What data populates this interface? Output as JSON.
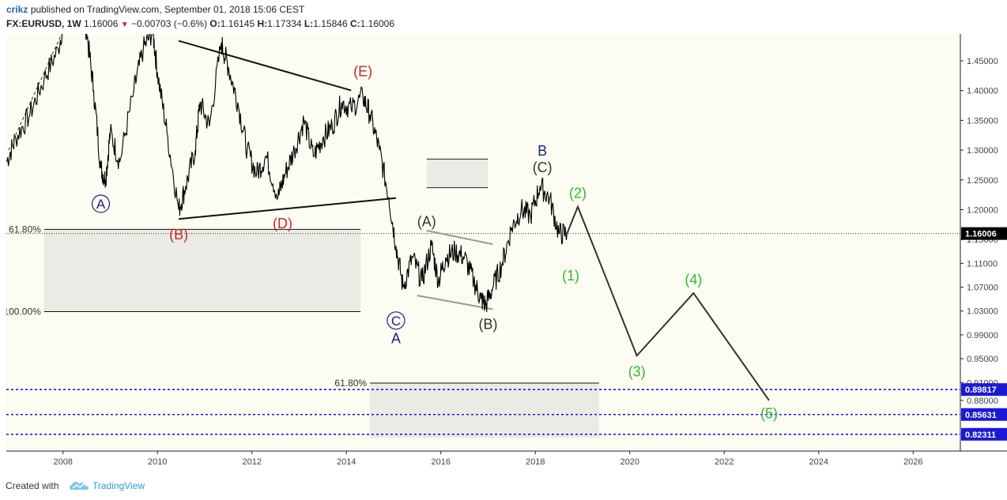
{
  "header": {
    "author": "crikz",
    "published_text": "published on TradingView.com, September 01, 2018 15:06 CEST",
    "symbol": "FX:EURUSD, 1W",
    "last": "1.16006",
    "change_arrow": "▼",
    "change": "−0.00703 (−0.6%)",
    "o_label": "O:",
    "o_value": "1.16145",
    "h_label": "H:",
    "h_value": "1.17334",
    "l_label": "L:",
    "l_value": "1.15846",
    "c_label": "C:",
    "c_value": "1.16006"
  },
  "footer": {
    "created_with": "Created with",
    "brand": "TradingView",
    "logo_icon": "tradingview-cloud-icon"
  },
  "colors": {
    "background": "#fcfcf2",
    "price": "#000000",
    "wave_red": "#c62828",
    "wave_blue": "#1a237e",
    "wave_green": "#2eb82e",
    "wave_gray": "#333333",
    "fib_fill": "#e6e6e1",
    "dotted_blue": "#1a1ad6",
    "axis_text": "#444444"
  },
  "chart_data": {
    "type": "line",
    "ylim": [
      0.795,
      1.495
    ],
    "xlim": [
      2006.8,
      2027.0
    ],
    "x_ticks": [
      2008,
      2010,
      2012,
      2014,
      2016,
      2018,
      2020,
      2022,
      2024,
      2026
    ],
    "y_ticks": [
      "1.45000",
      "1.40000",
      "1.35000",
      "1.30000",
      "1.25000",
      "1.20000",
      "1.15000",
      "1.11000",
      "1.07000",
      "1.03000",
      "0.99000",
      "0.95000",
      "0.91000",
      "0.88000"
    ],
    "current_price": {
      "value": 1.16006,
      "label": "1.16006"
    },
    "price_series": {
      "x": [
        2006.8,
        2007.0,
        2007.3,
        2007.6,
        2007.9,
        2008.1,
        2008.3,
        2008.5,
        2008.65,
        2008.8,
        2008.9,
        2009.0,
        2009.2,
        2009.5,
        2009.7,
        2009.9,
        2010.0,
        2010.2,
        2010.45,
        2010.6,
        2010.8,
        2010.9,
        2011.1,
        2011.35,
        2011.5,
        2011.7,
        2011.9,
        2012.1,
        2012.3,
        2012.55,
        2012.7,
        2012.9,
        2013.1,
        2013.3,
        2013.5,
        2013.7,
        2013.9,
        2014.1,
        2014.35,
        2014.5,
        2014.7,
        2014.9,
        2015.05,
        2015.2,
        2015.4,
        2015.6,
        2015.8,
        2015.95,
        2016.1,
        2016.3,
        2016.5,
        2016.7,
        2016.85,
        2016.95,
        2017.1,
        2017.3,
        2017.5,
        2017.7,
        2017.9,
        2018.1,
        2018.3,
        2018.5,
        2018.67
      ],
      "y": [
        1.28,
        1.32,
        1.36,
        1.42,
        1.47,
        1.55,
        1.57,
        1.5,
        1.4,
        1.27,
        1.25,
        1.33,
        1.28,
        1.4,
        1.47,
        1.5,
        1.43,
        1.33,
        1.2,
        1.24,
        1.3,
        1.38,
        1.34,
        1.48,
        1.44,
        1.38,
        1.3,
        1.26,
        1.29,
        1.22,
        1.26,
        1.3,
        1.35,
        1.29,
        1.32,
        1.34,
        1.38,
        1.37,
        1.39,
        1.36,
        1.3,
        1.22,
        1.14,
        1.07,
        1.12,
        1.08,
        1.14,
        1.08,
        1.12,
        1.13,
        1.12,
        1.08,
        1.05,
        1.04,
        1.07,
        1.11,
        1.17,
        1.2,
        1.19,
        1.24,
        1.22,
        1.16,
        1.16
      ]
    },
    "projection": {
      "x": [
        2018.67,
        2018.9,
        2020.15,
        2021.35,
        2022.95
      ],
      "y": [
        1.16,
        1.205,
        0.955,
        1.06,
        0.88
      ]
    },
    "trendlines": [
      {
        "x": [
          2010.45,
          2014.1
        ],
        "y": [
          1.4835,
          1.4003
        ]
      },
      {
        "x": [
          2010.45,
          2015.05
        ],
        "y": [
          1.1845,
          1.2195
        ]
      },
      {
        "x": [
          2015.7,
          2017.1
        ],
        "y": [
          1.165,
          1.142
        ]
      },
      {
        "x": [
          2015.5,
          2017.1
        ],
        "y": [
          1.056,
          1.033
        ]
      }
    ],
    "rectangles": [
      {
        "x": [
          2015.7,
          2017.0
        ],
        "y": [
          1.237,
          1.285
        ]
      },
      {
        "x": [
          2007.6,
          2014.3
        ],
        "y": [
          1.029,
          1.167
        ]
      },
      {
        "x": [
          2014.5,
          2019.35
        ],
        "y": [
          0.817,
          0.909
        ]
      }
    ],
    "fib_levels": [
      {
        "label": "61.80%",
        "value": 1.167,
        "x": [
          2007.6,
          2014.3
        ]
      },
      {
        "label": "100.00%",
        "value": 1.029,
        "x": [
          2007.6,
          2014.3
        ]
      },
      {
        "label": "61.80%",
        "value": 0.909,
        "x": [
          2014.5,
          2019.35
        ]
      }
    ],
    "horizontal_levels": [
      {
        "value": 0.89817,
        "label": "0.89817"
      },
      {
        "value": 0.85631,
        "label": "0.85631"
      },
      {
        "value": 0.82311,
        "label": "0.82311"
      }
    ],
    "wave_labels": [
      {
        "text": "A",
        "circled": true,
        "x": 2008.8,
        "y": 1.21,
        "color": "#1a237e"
      },
      {
        "text": "(B)",
        "x": 2010.45,
        "y": 1.158,
        "color": "#c62828"
      },
      {
        "text": "(D)",
        "x": 2012.65,
        "y": 1.177,
        "color": "#c62828"
      },
      {
        "text": "(E)",
        "x": 2014.35,
        "y": 1.432,
        "color": "#c62828"
      },
      {
        "text": "C",
        "circled": true,
        "x": 2015.05,
        "y": 1.014,
        "color": "#1a237e"
      },
      {
        "text": "A",
        "x": 2015.05,
        "y": 0.984,
        "color": "#1a237e"
      },
      {
        "text": "(A)",
        "x": 2015.7,
        "y": 1.18,
        "color": "#333333"
      },
      {
        "text": "(B)",
        "x": 2017.0,
        "y": 1.008,
        "color": "#333333"
      },
      {
        "text": "B",
        "x": 2018.15,
        "y": 1.299,
        "color": "#1a237e"
      },
      {
        "text": "(C)",
        "x": 2018.15,
        "y": 1.271,
        "color": "#333333"
      },
      {
        "text": "(2)",
        "x": 2018.9,
        "y": 1.228,
        "color": "#2eb82e"
      },
      {
        "text": "(1)",
        "x": 2018.75,
        "y": 1.089,
        "color": "#2eb82e"
      },
      {
        "text": "(3)",
        "x": 2020.15,
        "y": 0.928,
        "color": "#2eb82e"
      },
      {
        "text": "(4)",
        "x": 2021.35,
        "y": 1.083,
        "color": "#2eb82e"
      },
      {
        "text": "(5)",
        "x": 2022.95,
        "y": 0.858,
        "color": "#2eb82e"
      }
    ]
  }
}
